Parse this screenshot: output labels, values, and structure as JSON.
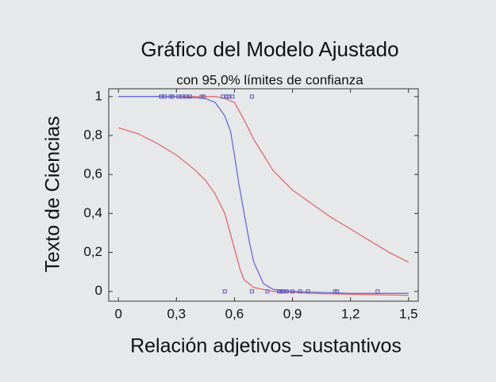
{
  "chart_data": {
    "type": "line",
    "title": "Gráfico del Modelo Ajustado",
    "subtitle": "con  95,0% límites de confianza",
    "x_label": "Relación adjetivos_sustantivos",
    "y_label": "Texto de Ciencias",
    "xlim": [
      -0.05,
      1.55
    ],
    "ylim": [
      -0.05,
      1.04
    ],
    "xticks": [
      0,
      {
        "value": 0.3,
        "label": "0,3"
      },
      {
        "value": 0.6,
        "label": "0,6"
      },
      {
        "value": 0.9,
        "label": "0,9"
      },
      {
        "value": 1.2,
        "label": "1,2"
      },
      {
        "value": 1.5,
        "label": "1,5"
      }
    ],
    "yticks": [
      0,
      {
        "value": 0.2,
        "label": "0,2"
      },
      {
        "value": 0.4,
        "label": "0,4"
      },
      {
        "value": 0.6,
        "label": "0,6"
      },
      {
        "value": 0.8,
        "label": "0,8"
      },
      1
    ],
    "series": [
      {
        "mode": "line",
        "color": "#e06a6a",
        "x": [
          0,
          0.1,
          0.2,
          0.3,
          0.4,
          0.45,
          0.5,
          0.55,
          0.6,
          0.63,
          0.65,
          0.7,
          0.8,
          1.0,
          1.2,
          1.5
        ],
        "values": [
          0.84,
          0.81,
          0.76,
          0.7,
          0.62,
          0.57,
          0.5,
          0.4,
          0.22,
          0.11,
          0.06,
          0.02,
          0.0,
          -0.01,
          -0.015,
          -0.02
        ]
      },
      {
        "mode": "line",
        "color": "#e06a6a",
        "x": [
          0,
          0.3,
          0.5,
          0.55,
          0.6,
          0.65,
          0.7,
          0.8,
          0.9,
          1.0,
          1.1,
          1.2,
          1.3,
          1.4,
          1.5
        ],
        "values": [
          1.0,
          1.0,
          1.0,
          0.99,
          0.97,
          0.88,
          0.78,
          0.62,
          0.52,
          0.45,
          0.38,
          0.32,
          0.26,
          0.2,
          0.15
        ]
      },
      {
        "mode": "line",
        "color": "#6a6ad8",
        "x": [
          0,
          0.3,
          0.45,
          0.5,
          0.55,
          0.58,
          0.6,
          0.62,
          0.65,
          0.68,
          0.7,
          0.75,
          0.8,
          0.9,
          1.2,
          1.5
        ],
        "values": [
          1.0,
          1.0,
          0.99,
          0.97,
          0.9,
          0.82,
          0.7,
          0.57,
          0.4,
          0.24,
          0.15,
          0.04,
          0.01,
          0.0,
          -0.01,
          -0.01
        ]
      },
      {
        "mode": "markers",
        "color": "#5a5ab8",
        "x": [
          0.22,
          0.24,
          0.27,
          0.28,
          0.31,
          0.33,
          0.35,
          0.37,
          0.43,
          0.44,
          0.54,
          0.56,
          0.57,
          0.59,
          0.69,
          0.55,
          0.69,
          0.77,
          0.83,
          0.84,
          0.85,
          0.87,
          0.9,
          0.94,
          0.98,
          1.12,
          1.13,
          1.34
        ],
        "values": [
          1,
          1,
          1,
          1,
          1,
          1,
          1,
          1,
          1,
          1,
          1,
          1,
          1,
          1,
          1,
          0,
          0,
          0,
          0,
          0,
          0,
          0,
          0,
          0,
          0,
          0,
          0,
          0
        ]
      }
    ]
  }
}
